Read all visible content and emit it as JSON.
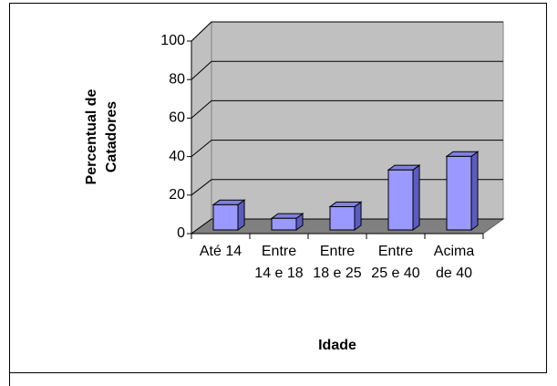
{
  "chart_data": {
    "type": "bar3d",
    "x_label": "Idade",
    "y_label": "Percentual de Catadores",
    "categories": [
      "Até 14",
      "Entre 14 e 18",
      "Entre 18 e 25",
      "Entre 25 e 40",
      "Acima de 40"
    ],
    "values": [
      13,
      6,
      12,
      31,
      38
    ],
    "color": "#9999ff",
    "ylim": [
      0,
      100
    ],
    "yticks": [
      0,
      20,
      40,
      60,
      80,
      100
    ],
    "grid": true
  }
}
